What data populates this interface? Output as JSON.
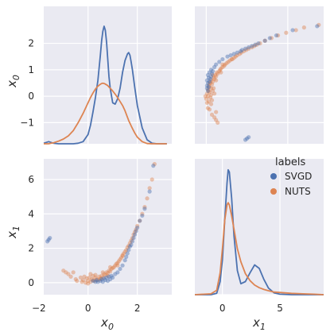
{
  "chart_data": {
    "type": "scatter",
    "kind": "pairplot",
    "variables": [
      "x0",
      "x1"
    ],
    "axis_labels": {
      "x0_main": "x",
      "x0_sub": "0",
      "x1_main": "x",
      "x1_sub": "1"
    },
    "legend": {
      "title": "labels",
      "entries": [
        "SVGD",
        "NUTS"
      ],
      "placement": "right"
    },
    "colors": {
      "SVGD": "#4c72b0",
      "NUTS": "#dd8452",
      "panel_bg": "#eaeaf2",
      "grid": "#ffffff"
    },
    "ranges": {
      "x0": [
        -1.8,
        3.4
      ],
      "x1": [
        -0.7,
        7.2
      ],
      "x1_diag": [
        -2.4,
        8.8
      ]
    },
    "ticks": {
      "x0_y": [
        -1,
        0,
        1,
        2
      ],
      "x0_x": [
        -2,
        0,
        2
      ],
      "x1_y": [
        0,
        2,
        4,
        6
      ],
      "x1_x": [
        0,
        5
      ]
    },
    "kde_x0": {
      "x": [
        -1.8,
        -1.7,
        -1.6,
        -1.5,
        -1.4,
        -1.2,
        -1.0,
        -0.8,
        -0.6,
        -0.4,
        -0.2,
        0.0,
        0.1,
        0.2,
        0.3,
        0.4,
        0.5,
        0.55,
        0.6,
        0.65,
        0.7,
        0.75,
        0.8,
        0.85,
        0.9,
        1.0,
        1.1,
        1.2,
        1.3,
        1.4,
        1.5,
        1.6,
        1.65,
        1.7,
        1.75,
        1.8,
        1.9,
        2.0,
        2.2,
        2.4,
        2.6,
        2.8,
        3.0,
        3.2
      ],
      "series": [
        {
          "name": "SVGD",
          "values": [
            -1.78,
            -1.75,
            -1.72,
            -1.75,
            -1.78,
            -1.8,
            -1.8,
            -1.8,
            -1.8,
            -1.78,
            -1.72,
            -1.45,
            -1.1,
            -0.6,
            -0.05,
            0.6,
            1.55,
            2.1,
            2.45,
            2.65,
            2.5,
            2.05,
            1.4,
            0.75,
            0.3,
            -0.25,
            -0.3,
            -0.1,
            0.3,
            0.9,
            1.35,
            1.6,
            1.65,
            1.55,
            1.3,
            1.0,
            0.3,
            -0.35,
            -1.2,
            -1.65,
            -1.78,
            -1.8,
            -1.8,
            -1.8
          ]
        },
        {
          "name": "NUTS",
          "values": [
            -1.8,
            -1.8,
            -1.8,
            -1.78,
            -1.76,
            -1.7,
            -1.62,
            -1.5,
            -1.3,
            -1.0,
            -0.65,
            -0.25,
            -0.05,
            0.12,
            0.27,
            0.38,
            0.45,
            0.48,
            0.49,
            0.48,
            0.46,
            0.43,
            0.4,
            0.35,
            0.3,
            0.2,
            0.08,
            -0.05,
            -0.2,
            -0.35,
            -0.55,
            -0.8,
            -0.92,
            -1.02,
            -1.12,
            -1.22,
            -1.4,
            -1.55,
            -1.72,
            -1.79,
            -1.8,
            -1.8,
            -1.8,
            -1.8
          ]
        }
      ]
    },
    "kde_x1": {
      "x": [
        -2.4,
        -1.0,
        -0.5,
        -0.2,
        0.0,
        0.2,
        0.4,
        0.5,
        0.6,
        0.8,
        1.0,
        1.3,
        1.6,
        2.0,
        2.4,
        2.8,
        3.2,
        3.6,
        4.0,
        4.5,
        5.0,
        6.0,
        7.0,
        8.0,
        8.8
      ],
      "series": [
        {
          "name": "SVGD",
          "values": [
            0,
            0,
            0.03,
            0.3,
            0.8,
            1.7,
            2.55,
            2.85,
            2.8,
            2.2,
            1.35,
            0.55,
            0.25,
            0.3,
            0.5,
            0.68,
            0.6,
            0.35,
            0.15,
            0.04,
            0.01,
            0,
            0,
            0,
            0
          ]
        },
        {
          "name": "NUTS",
          "values": [
            0,
            0.02,
            0.1,
            0.5,
            1.05,
            1.7,
            2.05,
            2.1,
            2.05,
            1.8,
            1.5,
            1.05,
            0.75,
            0.48,
            0.32,
            0.22,
            0.16,
            0.12,
            0.09,
            0.06,
            0.05,
            0.03,
            0.02,
            0.01,
            0
          ]
        }
      ]
    },
    "scatter": {
      "SVGD": {
        "x0": [
          0.2,
          0.3,
          0.35,
          0.4,
          0.5,
          0.55,
          0.6,
          0.65,
          0.7,
          0.75,
          0.8,
          0.85,
          0.9,
          0.95,
          1.0,
          1.1,
          1.2,
          1.3,
          1.4,
          1.5,
          1.55,
          1.6,
          1.65,
          1.7,
          1.75,
          1.8,
          1.85,
          1.9,
          1.95,
          2.0,
          2.1,
          2.2,
          2.3,
          2.5,
          2.65,
          -1.6,
          -1.65,
          -1.55
        ],
        "x1": [
          0.1,
          0.05,
          0.15,
          0.05,
          0.1,
          0.2,
          0.05,
          0.25,
          0.15,
          0.3,
          0.1,
          0.35,
          0.2,
          0.4,
          0.3,
          0.5,
          0.6,
          0.8,
          1.0,
          1.3,
          1.5,
          1.7,
          1.9,
          2.1,
          2.2,
          2.4,
          2.6,
          2.8,
          3.0,
          3.2,
          3.6,
          3.9,
          4.3,
          5.3,
          6.8,
          2.5,
          2.4,
          2.6
        ]
      },
      "NUTS": {
        "x0": [
          -1.0,
          -0.9,
          -0.8,
          -0.7,
          -0.6,
          -0.5,
          -0.45,
          -0.3,
          -0.25,
          -0.2,
          -0.15,
          -0.1,
          -0.05,
          0.0,
          0.05,
          0.1,
          0.15,
          0.2,
          0.25,
          0.3,
          0.35,
          0.4,
          0.45,
          0.5,
          0.55,
          0.6,
          0.65,
          0.7,
          0.75,
          0.8,
          0.85,
          0.9,
          0.95,
          1.0,
          1.05,
          1.1,
          1.15,
          1.2,
          1.25,
          1.3,
          1.35,
          1.4,
          1.45,
          1.5,
          1.55,
          1.6,
          1.65,
          1.7,
          1.75,
          1.8,
          1.85,
          1.9,
          1.95,
          2.0,
          2.1,
          2.2,
          2.3,
          2.4,
          2.5,
          2.6,
          2.7,
          0.1,
          0.3,
          0.6,
          0.9,
          1.2,
          1.4,
          0.0,
          0.2,
          0.5,
          0.8
        ],
        "x1": [
          0.7,
          0.6,
          0.5,
          0.35,
          0.6,
          0.2,
          0.1,
          0.3,
          0.05,
          0.15,
          0.35,
          0.0,
          0.25,
          0.1,
          0.3,
          0.05,
          0.2,
          0.4,
          0.1,
          0.3,
          0.2,
          0.15,
          0.35,
          0.25,
          0.4,
          0.3,
          0.5,
          0.45,
          0.6,
          0.55,
          0.7,
          0.65,
          0.8,
          0.85,
          0.9,
          1.0,
          1.1,
          1.15,
          1.25,
          1.35,
          1.45,
          1.55,
          1.7,
          1.8,
          1.9,
          2.05,
          2.15,
          2.3,
          2.45,
          2.6,
          2.8,
          2.95,
          3.1,
          3.3,
          3.6,
          4.0,
          4.4,
          4.9,
          5.5,
          6.0,
          6.9,
          0.5,
          0.45,
          0.6,
          0.9,
          1.0,
          1.6,
          -0.05,
          0.15,
          0.2,
          0.4
        ]
      }
    }
  }
}
